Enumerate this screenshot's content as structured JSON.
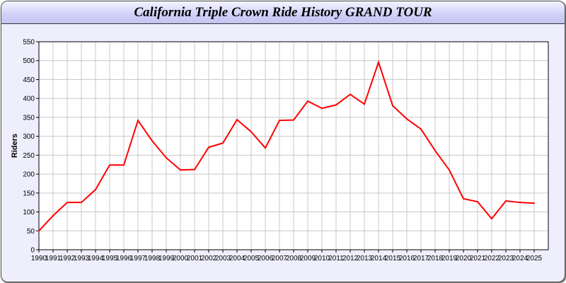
{
  "chart_data": {
    "type": "line",
    "title": "California Triple Crown Ride History GRAND TOUR",
    "xlabel": "",
    "ylabel": "Riders",
    "ylim": [
      0,
      550
    ],
    "yticks": [
      0,
      50,
      100,
      150,
      200,
      250,
      300,
      350,
      400,
      450,
      500,
      550
    ],
    "grid": true,
    "line_color": "#ff0000",
    "x": [
      1990,
      1991,
      1992,
      1993,
      1994,
      1995,
      1996,
      1997,
      1998,
      1999,
      2000,
      2001,
      2002,
      2003,
      2004,
      2005,
      2006,
      2007,
      2008,
      2009,
      2010,
      2011,
      2012,
      2013,
      2014,
      2015,
      2016,
      2017,
      2018,
      2019,
      2020,
      2021,
      2022,
      2023,
      2024,
      2025
    ],
    "values": [
      50,
      90,
      125,
      125,
      159,
      224,
      224,
      342,
      288,
      243,
      211,
      212,
      271,
      282,
      344,
      312,
      269,
      342,
      343,
      393,
      374,
      383,
      411,
      385,
      496,
      381,
      346,
      319,
      262,
      211,
      135,
      127,
      82,
      129,
      125,
      123
    ]
  }
}
